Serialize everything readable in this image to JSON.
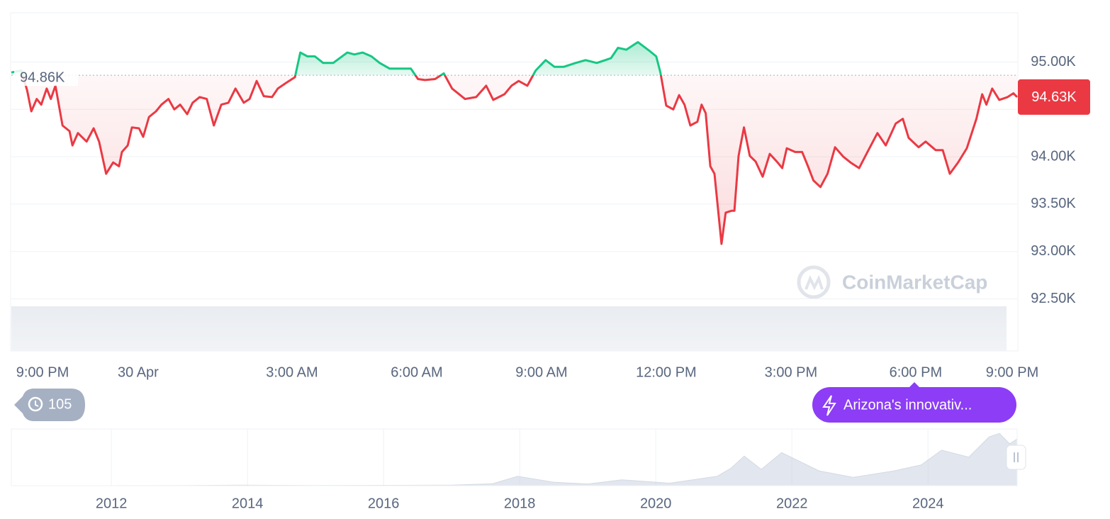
{
  "chart_data": [
    {
      "type": "line",
      "x": [
        -0.75,
        -0.51,
        -0.37,
        -0.27,
        -0.14,
        -0.03,
        0.1,
        0.2,
        0.31,
        0.48,
        0.65,
        0.72,
        0.85,
        1.06,
        1.23,
        1.36,
        1.53,
        1.7,
        1.84,
        1.91,
        2.05,
        2.15,
        2.32,
        2.42,
        2.56,
        2.73,
        2.86,
        3.03,
        3.17,
        3.31,
        3.48,
        3.61,
        3.78,
        3.95,
        4.12,
        4.3,
        4.47,
        4.64,
        4.84,
        4.98,
        5.15,
        5.32,
        5.52,
        5.66,
        5.86,
        6.07,
        6.2,
        6.37,
        6.55,
        6.75,
        6.99,
        7.33,
        7.5,
        7.7,
        7.91,
        8.11,
        8.35,
        8.62,
        8.86,
        9.03,
        9.2,
        9.44,
        9.65,
        9.85,
        10.16,
        10.43,
        10.67,
        10.84,
        11.11,
        11.28,
        11.45,
        11.66,
        11.86,
        12.1,
        12.31,
        12.54,
        12.82,
        13.06,
        13.33,
        13.67,
        13.84,
        14.04,
        14.32,
        14.59,
        14.76,
        14.86,
        15.0,
        15.17,
        15.31,
        15.44,
        15.58,
        15.75,
        15.85,
        15.95,
        16.06,
        16.16,
        16.33,
        16.43,
        16.57,
        16.64,
        16.74,
        16.87,
        17.01,
        17.15,
        17.32,
        17.49,
        17.66,
        17.79,
        17.9,
        18.1,
        18.27,
        18.41,
        18.54,
        18.71,
        18.88,
        19.06,
        19.26,
        19.43,
        19.64,
        19.84,
        20.08,
        20.28,
        20.52,
        20.69,
        20.83,
        21.07,
        21.24,
        21.48,
        21.65,
        21.82,
        22.02,
        22.23,
        22.46,
        22.6,
        22.7,
        22.84,
        23.01,
        23.21,
        23.35,
        23.44
      ],
      "values": [
        94.89,
        94.91,
        94.7,
        94.48,
        94.61,
        94.55,
        94.72,
        94.61,
        94.75,
        94.33,
        94.27,
        94.12,
        94.25,
        94.16,
        94.3,
        94.16,
        93.82,
        93.94,
        93.9,
        94.05,
        94.12,
        94.31,
        94.3,
        94.21,
        94.42,
        94.48,
        94.55,
        94.61,
        94.5,
        94.55,
        94.45,
        94.57,
        94.63,
        94.61,
        94.33,
        94.55,
        94.57,
        94.72,
        94.57,
        94.61,
        94.8,
        94.64,
        94.63,
        94.72,
        94.78,
        94.84,
        95.1,
        95.06,
        95.06,
        94.99,
        94.99,
        95.1,
        95.08,
        95.1,
        95.06,
        94.99,
        94.93,
        94.93,
        94.93,
        94.82,
        94.81,
        94.82,
        94.88,
        94.72,
        94.61,
        94.63,
        94.75,
        94.6,
        94.66,
        94.75,
        94.8,
        94.75,
        94.91,
        95.02,
        94.95,
        94.95,
        94.99,
        95.02,
        94.99,
        95.04,
        95.15,
        95.13,
        95.21,
        95.12,
        95.06,
        94.89,
        94.54,
        94.5,
        94.65,
        94.55,
        94.33,
        94.37,
        94.55,
        94.46,
        93.9,
        93.82,
        93.08,
        93.41,
        93.43,
        93.43,
        94.01,
        94.31,
        94.01,
        93.95,
        93.79,
        94.03,
        93.95,
        93.88,
        94.09,
        94.05,
        94.05,
        93.9,
        93.75,
        93.68,
        93.82,
        94.1,
        94.0,
        93.94,
        93.88,
        94.05,
        94.25,
        94.12,
        94.35,
        94.4,
        94.2,
        94.1,
        94.16,
        94.07,
        94.07,
        93.82,
        93.94,
        94.09,
        94.4,
        94.66,
        94.55,
        94.72,
        94.6,
        94.63,
        94.67,
        94.63
      ],
      "up_color": "#16c784",
      "down_color": "#ea3943",
      "reference": {
        "value": 94.86,
        "label": "94.86K"
      },
      "last_price": {
        "value": 94.63,
        "label": "94.63K"
      },
      "xlim": [
        -0.75,
        23.44
      ],
      "xticks": [
        {
          "value": 0,
          "label": "9:00 PM"
        },
        {
          "value": 2.3,
          "label": "30 Apr"
        },
        {
          "value": 6,
          "label": "3:00 AM"
        },
        {
          "value": 9,
          "label": "6:00 AM"
        },
        {
          "value": 12,
          "label": "9:00 AM"
        },
        {
          "value": 15,
          "label": "12:00 PM"
        },
        {
          "value": 18,
          "label": "3:00 PM"
        },
        {
          "value": 21,
          "label": "6:00 PM"
        },
        {
          "value": 24,
          "label": "9:00 PM"
        }
      ],
      "ylim": [
        91.95,
        95.52
      ],
      "yticks": [
        {
          "value": 95,
          "label": "95.00K"
        },
        {
          "value": 94.5,
          "label": "94.50K"
        },
        {
          "value": 94,
          "label": "94.00K"
        },
        {
          "value": 93.5,
          "label": "93.50K"
        },
        {
          "value": 93,
          "label": "93.00K"
        },
        {
          "value": 92.5,
          "label": "92.50K"
        }
      ],
      "grid": true,
      "watermark": "CoinMarketCap",
      "history_count": "105",
      "news_badge": "Arizona's innovativ..."
    },
    {
      "type": "area",
      "x": [
        2010.6,
        2013,
        2013.9,
        2015,
        2017,
        2017.6,
        2017.97,
        2018.5,
        2019,
        2019.5,
        2020.2,
        2020.9,
        2021.1,
        2021.3,
        2021.55,
        2021.85,
        2022.4,
        2022.9,
        2023.5,
        2023.9,
        2024.2,
        2024.6,
        2024.9,
        2025.05,
        2025.2,
        2025.31
      ],
      "values": [
        0,
        0.1,
        1,
        0.3,
        1,
        4,
        19,
        7,
        3.5,
        12,
        5,
        19,
        35,
        60,
        33,
        67,
        30,
        17,
        30,
        42,
        72,
        58,
        99,
        106,
        85,
        94.6
      ],
      "color": "#cfd6e4",
      "xlim": [
        2010.53,
        2025.31
      ],
      "xticks": [
        2012,
        2014,
        2016,
        2018,
        2020,
        2022,
        2024
      ],
      "ylim": [
        0,
        115
      ]
    }
  ]
}
